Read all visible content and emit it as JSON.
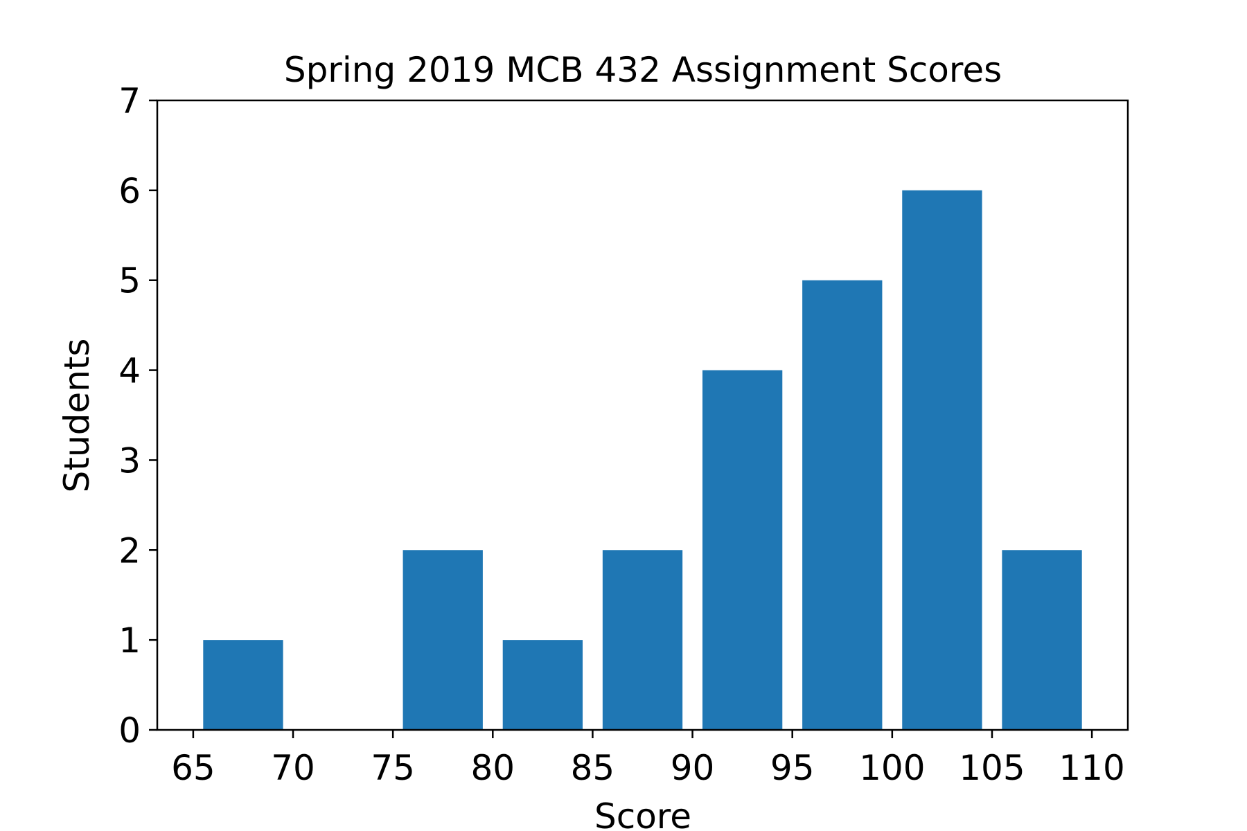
{
  "chart_data": {
    "type": "bar",
    "title": "Spring 2019 MCB 432 Assignment Scores",
    "xlabel": "Score",
    "ylabel": "Students",
    "xlim": [
      63.2,
      111.8
    ],
    "ylim": [
      0,
      7
    ],
    "xticks": [
      65,
      70,
      75,
      80,
      85,
      90,
      95,
      100,
      105,
      110
    ],
    "yticks": [
      0,
      1,
      2,
      3,
      4,
      5,
      6,
      7
    ],
    "bin_edges": [
      65,
      70,
      75,
      80,
      85,
      90,
      95,
      100,
      105,
      110
    ],
    "values": [
      1,
      0,
      2,
      1,
      2,
      4,
      5,
      6,
      2
    ],
    "bar_width": 4,
    "bar_color": "#1f77b4",
    "grid": false,
    "legend": "none"
  }
}
